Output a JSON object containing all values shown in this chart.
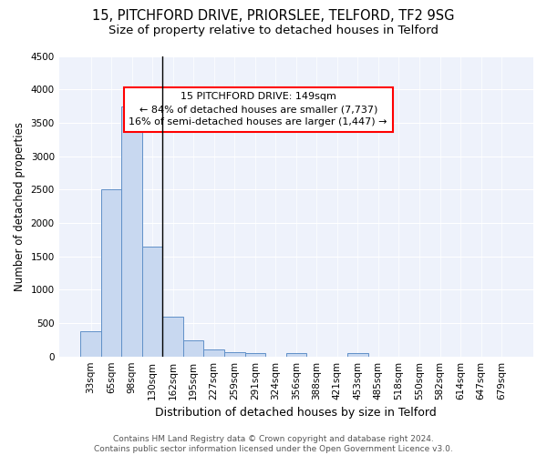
{
  "title1": "15, PITCHFORD DRIVE, PRIORSLEE, TELFORD, TF2 9SG",
  "title2": "Size of property relative to detached houses in Telford",
  "xlabel": "Distribution of detached houses by size in Telford",
  "ylabel": "Number of detached properties",
  "categories": [
    "33sqm",
    "65sqm",
    "98sqm",
    "130sqm",
    "162sqm",
    "195sqm",
    "227sqm",
    "259sqm",
    "291sqm",
    "324sqm",
    "356sqm",
    "388sqm",
    "421sqm",
    "453sqm",
    "485sqm",
    "518sqm",
    "550sqm",
    "582sqm",
    "614sqm",
    "647sqm",
    "679sqm"
  ],
  "values": [
    375,
    2500,
    3750,
    1650,
    600,
    240,
    105,
    60,
    50,
    0,
    50,
    0,
    0,
    55,
    0,
    0,
    0,
    0,
    0,
    0,
    0
  ],
  "bar_color": "#c8d8f0",
  "bar_edge_color": "#6090c8",
  "vline_index": 3.5,
  "ylim": [
    0,
    4500
  ],
  "yticks": [
    0,
    500,
    1000,
    1500,
    2000,
    2500,
    3000,
    3500,
    4000,
    4500
  ],
  "annotation_text_line1": "15 PITCHFORD DRIVE: 149sqm",
  "annotation_text_line2": "← 84% of detached houses are smaller (7,737)",
  "annotation_text_line3": "16% of semi-detached houses are larger (1,447) →",
  "background_color": "#eef2fb",
  "grid_color": "#ffffff",
  "footer_text": "Contains HM Land Registry data © Crown copyright and database right 2024.\nContains public sector information licensed under the Open Government Licence v3.0.",
  "title1_fontsize": 10.5,
  "title2_fontsize": 9.5,
  "xlabel_fontsize": 9,
  "ylabel_fontsize": 8.5,
  "tick_fontsize": 7.5,
  "annotation_fontsize": 8,
  "footer_fontsize": 6.5
}
